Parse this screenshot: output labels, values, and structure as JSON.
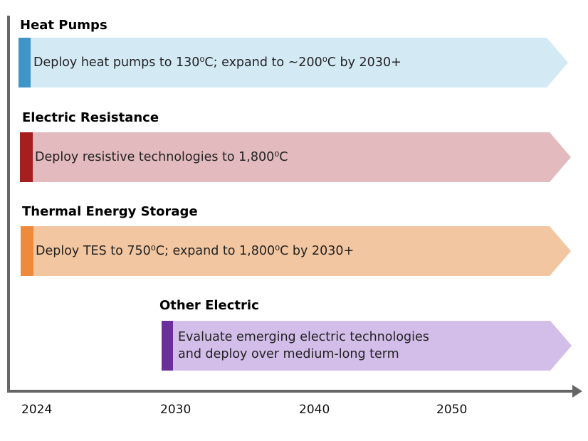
{
  "axis": {
    "ticks": [
      "2024",
      "2030",
      "2040",
      "2050"
    ],
    "color": "#666666"
  },
  "rows": [
    {
      "label": "Heat Pumps",
      "text": "Deploy heat pumps to 130⁰C; expand to ~200⁰C by 2030+",
      "accent": "#3f94c8",
      "fill": "#d3eaf5"
    },
    {
      "label": "Electric Resistance",
      "text": "Deploy resistive technologies to 1,800⁰C",
      "accent": "#a61e1e",
      "fill": "#e3babd"
    },
    {
      "label": "Thermal Energy Storage",
      "text": "Deploy TES to 750⁰C; expand to 1,800⁰C by 2030+",
      "accent": "#ef8a3c",
      "fill": "#f2c6a0"
    },
    {
      "label": "Other Electric",
      "text_line1": "Evaluate emerging electric technologies",
      "text_line2": "and deploy over medium-long term",
      "accent": "#6a2f9a",
      "fill": "#d3bde9"
    }
  ]
}
